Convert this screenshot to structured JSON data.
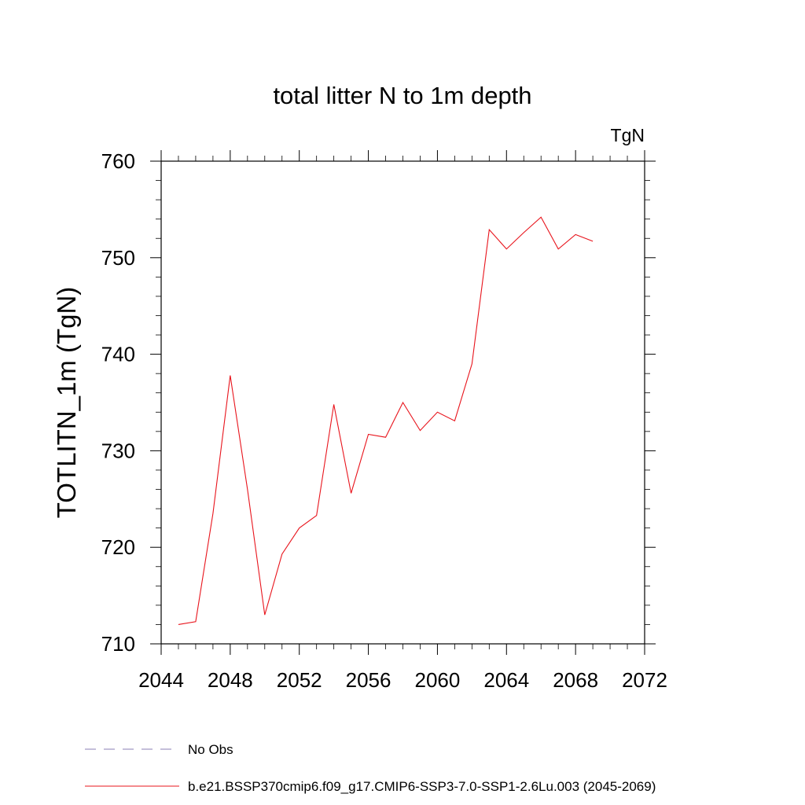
{
  "chart_data": {
    "type": "line",
    "title": "total litter N to 1m depth",
    "units_label": "TgN",
    "xlabel": "",
    "ylabel": "TOTLITN_1m  (TgN)",
    "xlim": [
      2044,
      2072
    ],
    "ylim": [
      710,
      760
    ],
    "x_ticks": [
      2044,
      2048,
      2052,
      2056,
      2060,
      2064,
      2068,
      2072
    ],
    "y_ticks": [
      710,
      720,
      730,
      740,
      750,
      760
    ],
    "x_tick_labels": [
      "2044",
      "2048",
      "2052",
      "2056",
      "2060",
      "2064",
      "2068",
      "2072"
    ],
    "y_tick_labels": [
      "710",
      "720",
      "730",
      "740",
      "750",
      "760"
    ],
    "grid": false,
    "legend_placement": "bottom",
    "series": [
      {
        "name": "No Obs",
        "color": "#8a7fb5",
        "style": "dashed",
        "x": [],
        "y": []
      },
      {
        "name": "b.e21.BSSP370cmip6.f09_g17.CMIP6-SSP3-7.0-SSP1-2.6Lu.003 (2045-2069)",
        "color": "#e8141c",
        "style": "solid",
        "x": [
          2045,
          2046,
          2047,
          2048,
          2049,
          2050,
          2051,
          2052,
          2053,
          2054,
          2055,
          2056,
          2057,
          2058,
          2059,
          2060,
          2061,
          2062,
          2063,
          2064,
          2065,
          2066,
          2067,
          2068,
          2069
        ],
        "y": [
          712.0,
          712.3,
          723.5,
          737.8,
          726.0,
          713.0,
          719.3,
          722.0,
          723.3,
          734.8,
          725.6,
          731.7,
          731.4,
          735.0,
          732.1,
          734.0,
          733.1,
          739.0,
          752.9,
          750.9,
          752.6,
          754.2,
          750.9,
          752.4,
          751.7
        ]
      }
    ]
  }
}
